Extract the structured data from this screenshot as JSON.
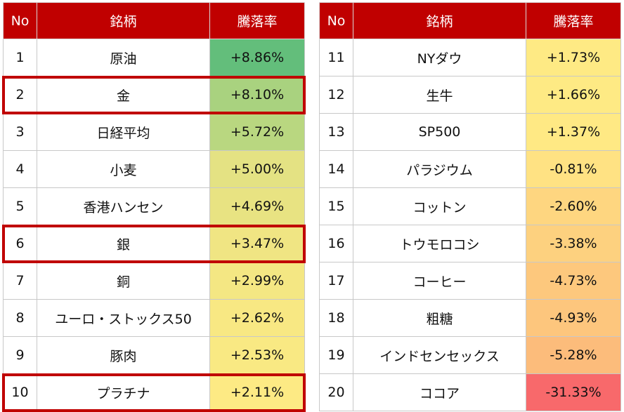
{
  "headers": {
    "no": "No",
    "name": "銘柄",
    "change": "騰落率"
  },
  "left": [
    {
      "no": "1",
      "name": "原油",
      "change": "+8.86%",
      "color": "#63be7b"
    },
    {
      "no": "2",
      "name": "金",
      "change": "+8.10%",
      "color": "#a9d27f",
      "highlight": true
    },
    {
      "no": "3",
      "name": "日経平均",
      "change": "+5.72%",
      "color": "#b9d780"
    },
    {
      "no": "4",
      "name": "小麦",
      "change": "+5.00%",
      "color": "#e4e283"
    },
    {
      "no": "5",
      "name": "香港ハンセン",
      "change": "+4.69%",
      "color": "#e8e382"
    },
    {
      "no": "6",
      "name": "銀",
      "change": "+3.47%",
      "color": "#f0e583",
      "highlight": true
    },
    {
      "no": "7",
      "name": "銅",
      "change": "+2.99%",
      "color": "#f4e783"
    },
    {
      "no": "8",
      "name": "ユーロ・ストックス50",
      "change": "+2.62%",
      "color": "#f8e883"
    },
    {
      "no": "9",
      "name": "豚肉",
      "change": "+2.53%",
      "color": "#f9e983"
    },
    {
      "no": "10",
      "name": "プラチナ",
      "change": "+2.11%",
      "color": "#fdea84",
      "highlight": true
    }
  ],
  "right": [
    {
      "no": "11",
      "name": "NYダウ",
      "change": "+1.73%",
      "color": "#feea84"
    },
    {
      "no": "12",
      "name": "生牛",
      "change": "+1.66%",
      "color": "#feea84"
    },
    {
      "no": "13",
      "name": "SP500",
      "change": "+1.37%",
      "color": "#ffe984"
    },
    {
      "no": "14",
      "name": "パラジウム",
      "change": "-0.81%",
      "color": "#ffe283"
    },
    {
      "no": "15",
      "name": "コットン",
      "change": "-2.60%",
      "color": "#fed680"
    },
    {
      "no": "16",
      "name": "トウモロコシ",
      "change": "-3.38%",
      "color": "#fdd17f"
    },
    {
      "no": "17",
      "name": "コーヒー",
      "change": "-4.73%",
      "color": "#fdc87d"
    },
    {
      "no": "18",
      "name": "粗糖",
      "change": "-4.93%",
      "color": "#fdc67d"
    },
    {
      "no": "19",
      "name": "インドセンセックス",
      "change": "-5.28%",
      "color": "#fcbc7b"
    },
    {
      "no": "20",
      "name": "ココア",
      "change": "-31.33%",
      "color": "#f8696b"
    }
  ],
  "highlight_color": "#c00000"
}
